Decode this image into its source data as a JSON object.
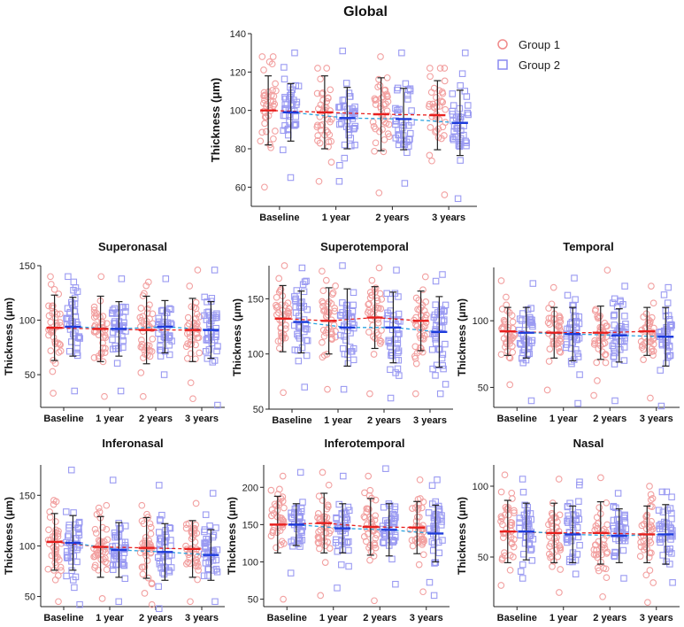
{
  "legend": {
    "position": "top-right",
    "entries": [
      {
        "name": "Group 1",
        "marker": "circle",
        "color": "#F08A8A"
      },
      {
        "name": "Group 2",
        "marker": "square",
        "color": "#8A8AF0"
      }
    ]
  },
  "colors": {
    "group1_points": "#F2A0A0",
    "group2_points": "#9A9AF2",
    "group1_mean": "#E8201E",
    "group2_mean": "#1E3CDC",
    "group1_trend": "#E8201E",
    "group2_trend": "#2AA3E0",
    "error_bar": "#222222",
    "axis": "#222222"
  },
  "chart_data": [
    {
      "type": "scatter",
      "title": "Global",
      "xlabel": "",
      "ylabel": "Thickness (μm)",
      "categories": [
        "Baseline",
        "1 year",
        "2 years",
        "3 years"
      ],
      "ylim": [
        50,
        140
      ],
      "yticks": [
        60,
        80,
        100,
        120,
        140
      ],
      "series": [
        {
          "name": "Group 1",
          "mean": [
            100,
            99,
            98,
            97.5
          ],
          "sd": [
            18,
            19,
            19,
            18
          ],
          "min": [
            60,
            63,
            57,
            56
          ],
          "max": [
            128,
            122,
            128,
            122
          ],
          "jitter_seed": 11
        },
        {
          "name": "Group 2",
          "mean": [
            99,
            96,
            95.5,
            93.5
          ],
          "sd": [
            15,
            16,
            16,
            17
          ],
          "min": [
            65,
            63,
            62,
            54
          ],
          "max": [
            130,
            131,
            130,
            130
          ],
          "jitter_seed": 12
        }
      ]
    },
    {
      "type": "scatter",
      "title": "Superonasal",
      "xlabel": "",
      "ylabel": "Thickness (μm)",
      "categories": [
        "Baseline",
        "1 year",
        "2 years",
        "3 years"
      ],
      "ylim": [
        20,
        150
      ],
      "yticks": [
        50,
        100,
        150
      ],
      "series": [
        {
          "name": "Group 1",
          "mean": [
            93,
            92,
            91,
            91
          ],
          "sd": [
            30,
            30,
            31,
            29
          ],
          "min": [
            33,
            30,
            30,
            28
          ],
          "max": [
            140,
            140,
            135,
            146
          ],
          "jitter_seed": 21
        },
        {
          "name": "Group 2",
          "mean": [
            94,
            92,
            94,
            91
          ],
          "sd": [
            27,
            25,
            24,
            26
          ],
          "min": [
            35,
            35,
            50,
            22
          ],
          "max": [
            140,
            138,
            138,
            146
          ],
          "jitter_seed": 22
        }
      ]
    },
    {
      "type": "scatter",
      "title": "Superotemporal",
      "xlabel": "",
      "ylabel": "Thickness (μm)",
      "categories": [
        "Baseline",
        "1 year",
        "2 years",
        "3 years"
      ],
      "ylim": [
        50,
        180
      ],
      "yticks": [
        50,
        100,
        150
      ],
      "series": [
        {
          "name": "Group 1",
          "mean": [
            132,
            130,
            133,
            130
          ],
          "sd": [
            30,
            30,
            28,
            27
          ],
          "min": [
            65,
            68,
            64,
            64
          ],
          "max": [
            180,
            175,
            178,
            170
          ],
          "jitter_seed": 31
        },
        {
          "name": "Group 2",
          "mean": [
            129,
            124,
            124,
            120
          ],
          "sd": [
            28,
            35,
            32,
            32
          ],
          "min": [
            70,
            68,
            60,
            64
          ],
          "max": [
            178,
            180,
            176,
            172
          ],
          "jitter_seed": 32
        }
      ]
    },
    {
      "type": "scatter",
      "title": "Temporal",
      "xlabel": "",
      "ylabel": "Thickness (μm)",
      "categories": [
        "Baseline",
        "1 year",
        "2 years",
        "3 years"
      ],
      "ylim": [
        35,
        140
      ],
      "yticks": [
        50,
        100
      ],
      "series": [
        {
          "name": "Group 1",
          "mean": [
            92,
            91,
            91,
            92
          ],
          "sd": [
            18,
            19,
            20,
            18
          ],
          "min": [
            52,
            48,
            44,
            42
          ],
          "max": [
            130,
            125,
            138,
            126
          ],
          "jitter_seed": 41
        },
        {
          "name": "Group 2",
          "mean": [
            91,
            90,
            89,
            88
          ],
          "sd": [
            19,
            20,
            20,
            22
          ],
          "min": [
            40,
            38,
            40,
            36
          ],
          "max": [
            128,
            132,
            126,
            125
          ],
          "jitter_seed": 42
        }
      ]
    },
    {
      "type": "scatter",
      "title": "Inferonasal",
      "xlabel": "",
      "ylabel": "Thickness (μm)",
      "categories": [
        "Baseline",
        "1 year",
        "2 years",
        "3 years"
      ],
      "ylim": [
        40,
        180
      ],
      "yticks": [
        50,
        100,
        150
      ],
      "series": [
        {
          "name": "Group 1",
          "mean": [
            104,
            99,
            98,
            97
          ],
          "sd": [
            28,
            30,
            30,
            28
          ],
          "min": [
            45,
            48,
            42,
            45
          ],
          "max": [
            145,
            140,
            140,
            142
          ],
          "jitter_seed": 51
        },
        {
          "name": "Group 2",
          "mean": [
            103,
            96,
            94,
            91
          ],
          "sd": [
            27,
            27,
            28,
            25
          ],
          "min": [
            42,
            45,
            38,
            45
          ],
          "max": [
            175,
            165,
            160,
            152
          ],
          "jitter_seed": 52
        }
      ]
    },
    {
      "type": "scatter",
      "title": "Inferotemporal",
      "xlabel": "",
      "ylabel": "Thickness (μm)",
      "categories": [
        "Baseline",
        "1 year",
        "2 years",
        "3 years"
      ],
      "ylim": [
        40,
        230
      ],
      "yticks": [
        50,
        100,
        150,
        200
      ],
      "series": [
        {
          "name": "Group 1",
          "mean": [
            150,
            152,
            147,
            146
          ],
          "sd": [
            38,
            40,
            38,
            35
          ],
          "min": [
            50,
            55,
            48,
            60
          ],
          "max": [
            215,
            220,
            215,
            210
          ],
          "jitter_seed": 61
        },
        {
          "name": "Group 2",
          "mean": [
            150,
            145,
            143,
            138
          ],
          "sd": [
            28,
            33,
            35,
            38
          ],
          "min": [
            85,
            65,
            70,
            55
          ],
          "max": [
            220,
            215,
            225,
            210
          ],
          "jitter_seed": 62
        }
      ]
    },
    {
      "type": "scatter",
      "title": "Nasal",
      "xlabel": "",
      "ylabel": "Thickness (μm)",
      "categories": [
        "Baseline",
        "1 year",
        "2 years",
        "3 years"
      ],
      "ylim": [
        15,
        115
      ],
      "yticks": [
        50,
        100
      ],
      "series": [
        {
          "name": "Group 1",
          "mean": [
            68,
            67,
            67,
            66
          ],
          "sd": [
            22,
            21,
            22,
            20
          ],
          "min": [
            30,
            25,
            22,
            18
          ],
          "max": [
            108,
            105,
            106,
            100
          ],
          "jitter_seed": 71
        },
        {
          "name": "Group 2",
          "mean": [
            68,
            66,
            65,
            66
          ],
          "sd": [
            20,
            20,
            19,
            21
          ],
          "min": [
            35,
            38,
            35,
            32
          ],
          "max": [
            105,
            103,
            95,
            96
          ],
          "jitter_seed": 72
        }
      ]
    }
  ]
}
